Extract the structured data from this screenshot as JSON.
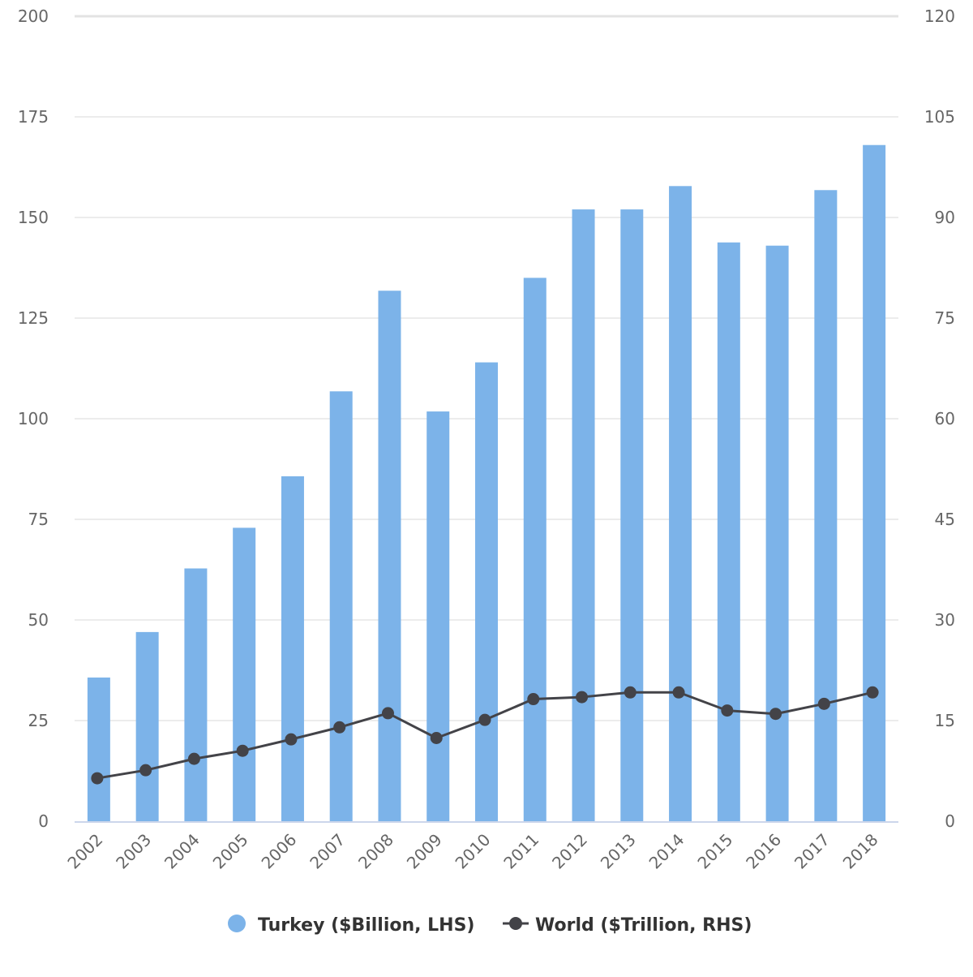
{
  "chart_data": {
    "type": "bar",
    "categories": [
      "2002",
      "2003",
      "2004",
      "2005",
      "2006",
      "2007",
      "2008",
      "2009",
      "2010",
      "2011",
      "2012",
      "2013",
      "2014",
      "2015",
      "2016",
      "2017",
      "2018"
    ],
    "series": [
      {
        "name": "Turkey ($Billion, LHS)",
        "type": "bar",
        "axis": "left",
        "color": "#7cb3e9",
        "values": [
          35.7,
          47.0,
          62.8,
          72.9,
          85.7,
          106.8,
          131.8,
          101.8,
          114.0,
          135.0,
          152.0,
          152.0,
          157.8,
          143.8,
          143.0,
          156.8,
          168.0
        ]
      },
      {
        "name": "World ($Trillion, RHS)",
        "type": "line",
        "axis": "right",
        "color": "#434348",
        "values": [
          6.4,
          7.6,
          9.3,
          10.5,
          12.2,
          14.0,
          16.1,
          12.4,
          15.1,
          18.2,
          18.5,
          19.2,
          19.2,
          16.5,
          16.0,
          17.5,
          19.2
        ]
      }
    ],
    "y_left": {
      "min": 0,
      "max": 200,
      "ticks": [
        "0",
        "25",
        "50",
        "75",
        "100",
        "125",
        "150",
        "175",
        "200"
      ]
    },
    "y_right": {
      "min": 0,
      "max": 120,
      "ticks": [
        "0",
        "15",
        "30",
        "45",
        "60",
        "75",
        "90",
        "105",
        "120"
      ]
    },
    "grid": true,
    "legend_position": "bottom-center"
  }
}
